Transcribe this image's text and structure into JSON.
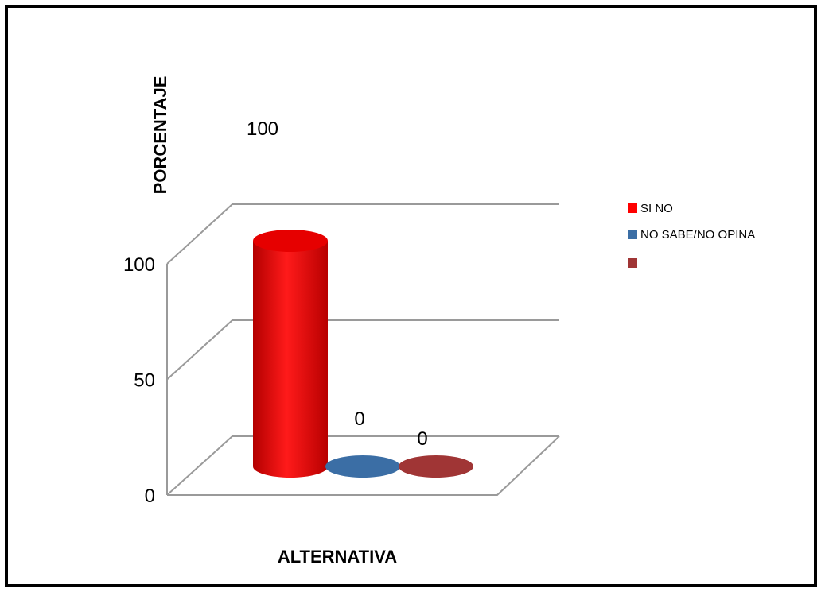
{
  "chart_data": {
    "type": "bar",
    "three_d": true,
    "bar_shape": "cylinder",
    "categories": [
      "SI NO",
      "NO SABE/NO OPINA",
      ""
    ],
    "values": [
      100,
      0,
      0
    ],
    "data_labels": [
      "100",
      "0",
      "0"
    ],
    "colors": [
      "#ff0000",
      "#3b6ea5",
      "#a03535"
    ],
    "xlabel": "ALTERNATIVA",
    "ylabel": "PORCENTAJE",
    "ylim": [
      0,
      100
    ],
    "yticks": [
      "0",
      "50",
      "100"
    ],
    "grid": true,
    "legend": "right",
    "legend_entries": [
      {
        "label": "SI NO",
        "color": "#ff0000"
      },
      {
        "label": "NO SABE/NO OPINA",
        "color": "#3b6ea5"
      },
      {
        "label": "",
        "color": "#a03535"
      }
    ]
  }
}
